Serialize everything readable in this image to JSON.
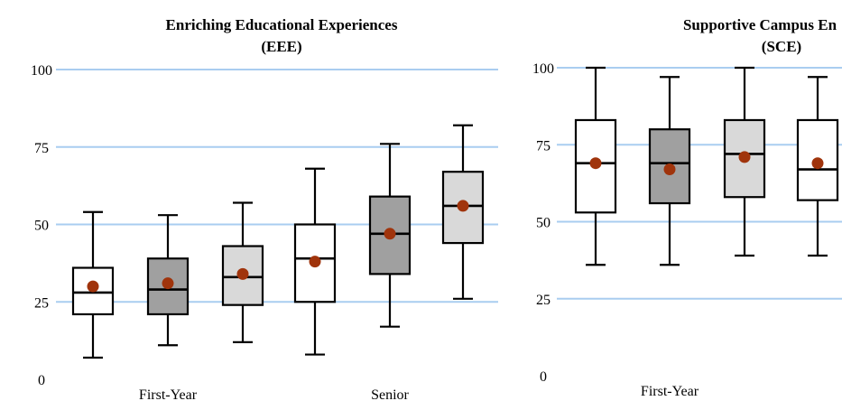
{
  "chart_data": [
    {
      "type": "box",
      "title": "Enriching Educational Experiences",
      "subtitle": "(EEE)",
      "ylim": [
        0,
        100
      ],
      "yticks": [
        0,
        25,
        50,
        75,
        100
      ],
      "grid": true,
      "groups": [
        "First-Year",
        "Senior"
      ],
      "colors": {
        "white": "#ffffff",
        "dark": "#a0a0a0",
        "light": "#d9d9d9",
        "mean": "#a0340c",
        "grid": "#a9cdf0"
      },
      "boxes": [
        {
          "group": "First-Year",
          "fill": "white",
          "min": 7,
          "q1": 21,
          "median": 28,
          "q3": 36,
          "max": 54,
          "mean": 30
        },
        {
          "group": "First-Year",
          "fill": "dark",
          "min": 11,
          "q1": 21,
          "median": 29,
          "q3": 39,
          "max": 53,
          "mean": 31
        },
        {
          "group": "First-Year",
          "fill": "light",
          "min": 12,
          "q1": 24,
          "median": 33,
          "q3": 43,
          "max": 57,
          "mean": 34
        },
        {
          "group": "Senior",
          "fill": "white",
          "min": 8,
          "q1": 25,
          "median": 39,
          "q3": 50,
          "max": 68,
          "mean": 38
        },
        {
          "group": "Senior",
          "fill": "dark",
          "min": 17,
          "q1": 34,
          "median": 47,
          "q3": 59,
          "max": 76,
          "mean": 47
        },
        {
          "group": "Senior",
          "fill": "light",
          "min": 26,
          "q1": 44,
          "median": 56,
          "q3": 67,
          "max": 82,
          "mean": 56
        }
      ]
    },
    {
      "type": "box",
      "title": "Supportive Campus En",
      "subtitle": "(SCE)",
      "ylim": [
        0,
        100
      ],
      "yticks": [
        0,
        25,
        50,
        75,
        100
      ],
      "grid": true,
      "groups": [
        "First-Year"
      ],
      "colors": {
        "white": "#ffffff",
        "dark": "#a0a0a0",
        "light": "#d9d9d9",
        "mean": "#a0340c",
        "grid": "#a9cdf0"
      },
      "boxes": [
        {
          "group": "First-Year",
          "fill": "white",
          "min": 36,
          "q1": 53,
          "median": 69,
          "q3": 83,
          "max": 100,
          "mean": 69
        },
        {
          "group": "First-Year",
          "fill": "dark",
          "min": 36,
          "q1": 56,
          "median": 69,
          "q3": 80,
          "max": 97,
          "mean": 67
        },
        {
          "group": "First-Year",
          "fill": "light",
          "min": 39,
          "q1": 58,
          "median": 72,
          "q3": 83,
          "max": 100,
          "mean": 71
        },
        {
          "group": "Senior",
          "fill": "white",
          "min": 39,
          "q1": 57,
          "median": 67,
          "q3": 83,
          "max": 97,
          "mean": 69
        }
      ]
    }
  ]
}
